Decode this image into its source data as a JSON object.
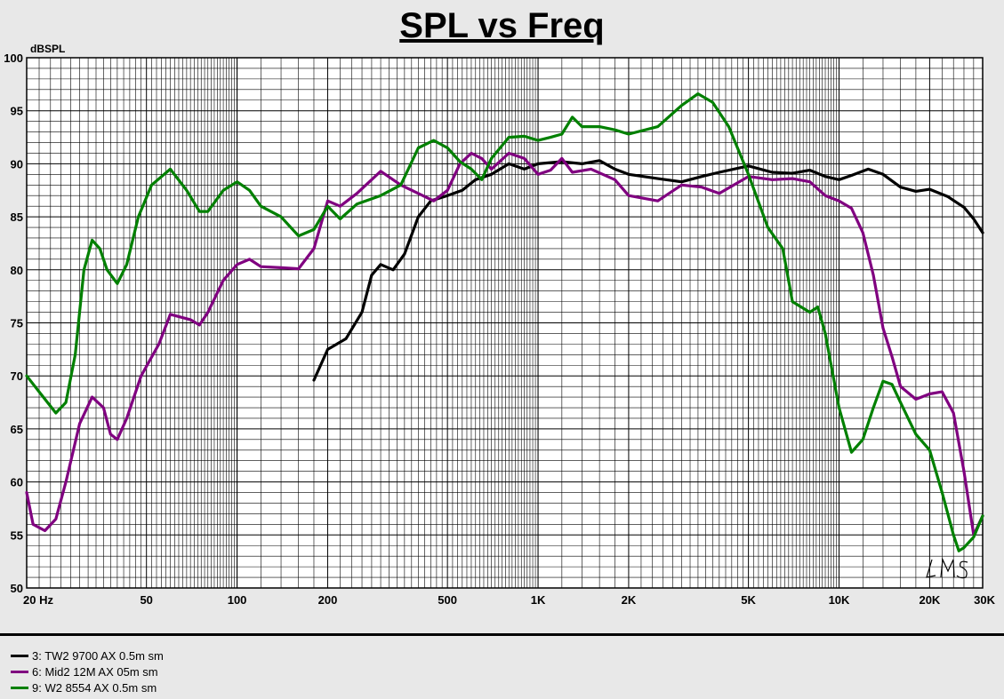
{
  "chart_data": {
    "type": "line",
    "title": "SPL vs Freq",
    "ylabel": "dBSPL",
    "xlabel": "",
    "x_scale": "log",
    "xlim": [
      20,
      30000
    ],
    "ylim": [
      50,
      100
    ],
    "grid": true,
    "x_tick_labels": [
      {
        "value": 20,
        "label": "20  Hz"
      },
      {
        "value": 50,
        "label": "50"
      },
      {
        "value": 100,
        "label": "100"
      },
      {
        "value": 200,
        "label": "200"
      },
      {
        "value": 500,
        "label": "500"
      },
      {
        "value": 1000,
        "label": "1K"
      },
      {
        "value": 2000,
        "label": "2K"
      },
      {
        "value": 5000,
        "label": "5K"
      },
      {
        "value": 10000,
        "label": "10K"
      },
      {
        "value": 20000,
        "label": "20K"
      },
      {
        "value": 30000,
        "label": "30K"
      }
    ],
    "y_tick_labels": [
      "100",
      "95",
      "90",
      "85",
      "80",
      "75",
      "70",
      "65",
      "60",
      "55",
      "50"
    ],
    "legend_placement": "bottom",
    "watermark": "LMS",
    "series": [
      {
        "name": "3: TW2 9700 AX 0.5m sm",
        "color": "#000000",
        "points": [
          [
            180,
            69.6
          ],
          [
            200,
            72.5
          ],
          [
            230,
            73.5
          ],
          [
            260,
            76
          ],
          [
            280,
            79.5
          ],
          [
            300,
            80.5
          ],
          [
            330,
            80
          ],
          [
            360,
            81.5
          ],
          [
            400,
            85
          ],
          [
            440,
            86.5
          ],
          [
            500,
            87
          ],
          [
            560,
            87.5
          ],
          [
            620,
            88.5
          ],
          [
            700,
            89
          ],
          [
            800,
            90
          ],
          [
            900,
            89.5
          ],
          [
            1000,
            90
          ],
          [
            1200,
            90.2
          ],
          [
            1400,
            90
          ],
          [
            1600,
            90.3
          ],
          [
            1800,
            89.5
          ],
          [
            2000,
            89
          ],
          [
            2500,
            88.6
          ],
          [
            3000,
            88.3
          ],
          [
            3500,
            88.8
          ],
          [
            4000,
            89.2
          ],
          [
            5000,
            89.8
          ],
          [
            6000,
            89.2
          ],
          [
            7000,
            89.1
          ],
          [
            8000,
            89.4
          ],
          [
            9000,
            88.8
          ],
          [
            10000,
            88.5
          ],
          [
            11000,
            88.9
          ],
          [
            12500,
            89.5
          ],
          [
            14000,
            89
          ],
          [
            16000,
            87.8
          ],
          [
            18000,
            87.4
          ],
          [
            20000,
            87.6
          ],
          [
            23000,
            86.9
          ],
          [
            26000,
            85.9
          ],
          [
            28000,
            84.8
          ],
          [
            30000,
            83.5
          ]
        ]
      },
      {
        "name": "6: Mid2 12M AX 05m sm",
        "color": "#800080",
        "points": [
          [
            20,
            59
          ],
          [
            21,
            56
          ],
          [
            23,
            55.4
          ],
          [
            25,
            56.5
          ],
          [
            27,
            60
          ],
          [
            30,
            65.5
          ],
          [
            33,
            68
          ],
          [
            36,
            67
          ],
          [
            38,
            64.5
          ],
          [
            40,
            64
          ],
          [
            43,
            66
          ],
          [
            48,
            70
          ],
          [
            55,
            73
          ],
          [
            60,
            75.8
          ],
          [
            70,
            75.3
          ],
          [
            75,
            74.8
          ],
          [
            80,
            76
          ],
          [
            90,
            79
          ],
          [
            100,
            80.5
          ],
          [
            110,
            81
          ],
          [
            120,
            80.3
          ],
          [
            140,
            80.2
          ],
          [
            160,
            80.1
          ],
          [
            180,
            82
          ],
          [
            200,
            86.5
          ],
          [
            220,
            86
          ],
          [
            250,
            87.2
          ],
          [
            280,
            88.5
          ],
          [
            300,
            89.3
          ],
          [
            350,
            88
          ],
          [
            400,
            87.2
          ],
          [
            450,
            86.5
          ],
          [
            500,
            87.5
          ],
          [
            550,
            90
          ],
          [
            600,
            91
          ],
          [
            650,
            90.5
          ],
          [
            700,
            89.5
          ],
          [
            800,
            91
          ],
          [
            900,
            90.5
          ],
          [
            1000,
            89
          ],
          [
            1100,
            89.4
          ],
          [
            1200,
            90.5
          ],
          [
            1300,
            89.2
          ],
          [
            1500,
            89.5
          ],
          [
            1800,
            88.5
          ],
          [
            2000,
            87
          ],
          [
            2500,
            86.5
          ],
          [
            3000,
            88
          ],
          [
            3500,
            87.8
          ],
          [
            4000,
            87.2
          ],
          [
            5000,
            88.8
          ],
          [
            6000,
            88.5
          ],
          [
            7000,
            88.6
          ],
          [
            8000,
            88.3
          ],
          [
            9000,
            87
          ],
          [
            10000,
            86.5
          ],
          [
            11000,
            85.8
          ],
          [
            12000,
            83.5
          ],
          [
            13000,
            79.5
          ],
          [
            14000,
            74.5
          ],
          [
            15000,
            71.8
          ],
          [
            16000,
            69
          ],
          [
            18000,
            67.8
          ],
          [
            20000,
            68.3
          ],
          [
            22000,
            68.5
          ],
          [
            24000,
            66.5
          ],
          [
            26000,
            61
          ],
          [
            28000,
            55
          ],
          [
            30000,
            56.8
          ]
        ]
      },
      {
        "name": "9: W2 8554 AX 0.5m sm",
        "color": "#008000",
        "points": [
          [
            20,
            70
          ],
          [
            22,
            68.5
          ],
          [
            25,
            66.5
          ],
          [
            27,
            67.5
          ],
          [
            29,
            72
          ],
          [
            31,
            80
          ],
          [
            33,
            82.8
          ],
          [
            35,
            82
          ],
          [
            37,
            80
          ],
          [
            40,
            78.7
          ],
          [
            43,
            80.5
          ],
          [
            47,
            85
          ],
          [
            52,
            88
          ],
          [
            60,
            89.5
          ],
          [
            68,
            87.5
          ],
          [
            75,
            85.5
          ],
          [
            80,
            85.5
          ],
          [
            90,
            87.5
          ],
          [
            100,
            88.3
          ],
          [
            110,
            87.5
          ],
          [
            120,
            86
          ],
          [
            140,
            85
          ],
          [
            160,
            83.2
          ],
          [
            180,
            83.8
          ],
          [
            200,
            86
          ],
          [
            220,
            84.8
          ],
          [
            250,
            86.2
          ],
          [
            300,
            87
          ],
          [
            350,
            88
          ],
          [
            400,
            91.5
          ],
          [
            450,
            92.2
          ],
          [
            500,
            91.5
          ],
          [
            550,
            90.2
          ],
          [
            600,
            89.5
          ],
          [
            650,
            88.5
          ],
          [
            700,
            90.5
          ],
          [
            800,
            92.5
          ],
          [
            900,
            92.6
          ],
          [
            1000,
            92.2
          ],
          [
            1100,
            92.5
          ],
          [
            1200,
            92.8
          ],
          [
            1300,
            94.4
          ],
          [
            1400,
            93.5
          ],
          [
            1600,
            93.5
          ],
          [
            1800,
            93.2
          ],
          [
            2000,
            92.8
          ],
          [
            2500,
            93.5
          ],
          [
            3000,
            95.5
          ],
          [
            3400,
            96.6
          ],
          [
            3800,
            95.8
          ],
          [
            4300,
            93.5
          ],
          [
            5000,
            89
          ],
          [
            5800,
            84
          ],
          [
            6500,
            82
          ],
          [
            7000,
            77
          ],
          [
            8000,
            76
          ],
          [
            8500,
            76.5
          ],
          [
            9000,
            74
          ],
          [
            10000,
            67
          ],
          [
            11000,
            62.8
          ],
          [
            12000,
            64
          ],
          [
            13000,
            67
          ],
          [
            14000,
            69.5
          ],
          [
            15000,
            69.2
          ],
          [
            16000,
            67.5
          ],
          [
            18000,
            64.5
          ],
          [
            20000,
            63
          ],
          [
            22000,
            59
          ],
          [
            24000,
            55
          ],
          [
            25000,
            53.5
          ],
          [
            26000,
            53.8
          ],
          [
            28000,
            54.8
          ],
          [
            30000,
            56.8
          ]
        ]
      }
    ]
  }
}
